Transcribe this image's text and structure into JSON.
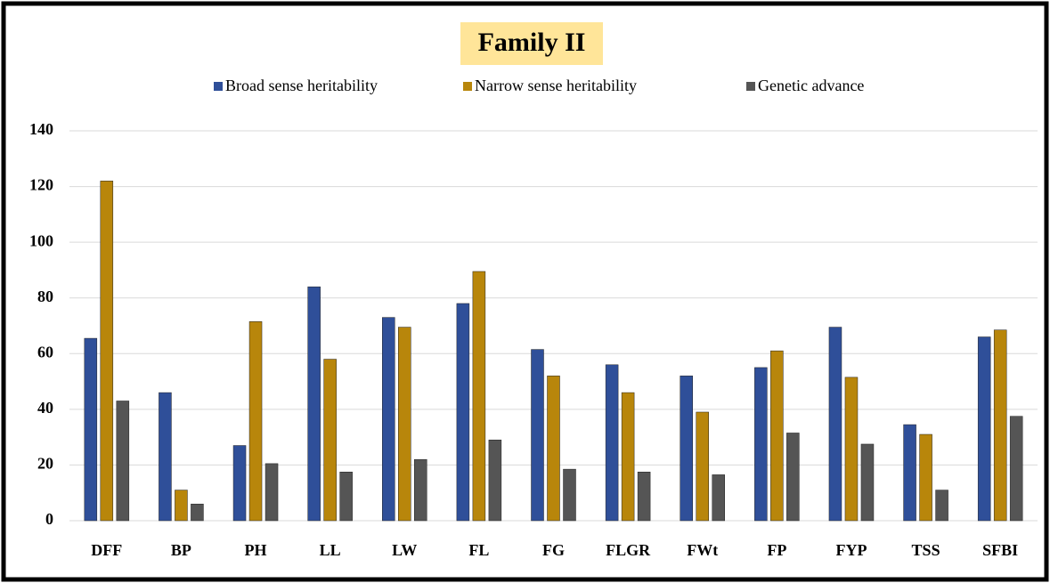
{
  "chart_data": {
    "type": "bar",
    "title": "Family II",
    "categories": [
      "DFF",
      "BP",
      "PH",
      "LL",
      "LW",
      "FL",
      "FG",
      "FLGR",
      "FWt",
      "FP",
      "FYP",
      "TSS",
      "SFBI"
    ],
    "series": [
      {
        "name": "Broad sense heritability",
        "color": "#2f4f99",
        "values": [
          65.5,
          46,
          27,
          84,
          73,
          78,
          61.5,
          56,
          52,
          55,
          69.5,
          34.5,
          66
        ]
      },
      {
        "name": "Narrow sense heritability",
        "color": "#b8860b",
        "values": [
          122,
          11,
          71.5,
          58,
          69.5,
          89.5,
          52,
          46,
          39,
          61,
          51.5,
          31,
          68.5
        ]
      },
      {
        "name": "Genetic advance",
        "color": "#555555",
        "values": [
          43,
          6,
          20.5,
          17.5,
          22,
          29,
          18.5,
          17.5,
          16.5,
          31.5,
          27.5,
          11,
          37.5
        ]
      }
    ],
    "ylim": [
      0,
      140
    ],
    "yticks": [
      0,
      20,
      40,
      60,
      80,
      100,
      120,
      140
    ],
    "grid": true,
    "legend": "top"
  }
}
